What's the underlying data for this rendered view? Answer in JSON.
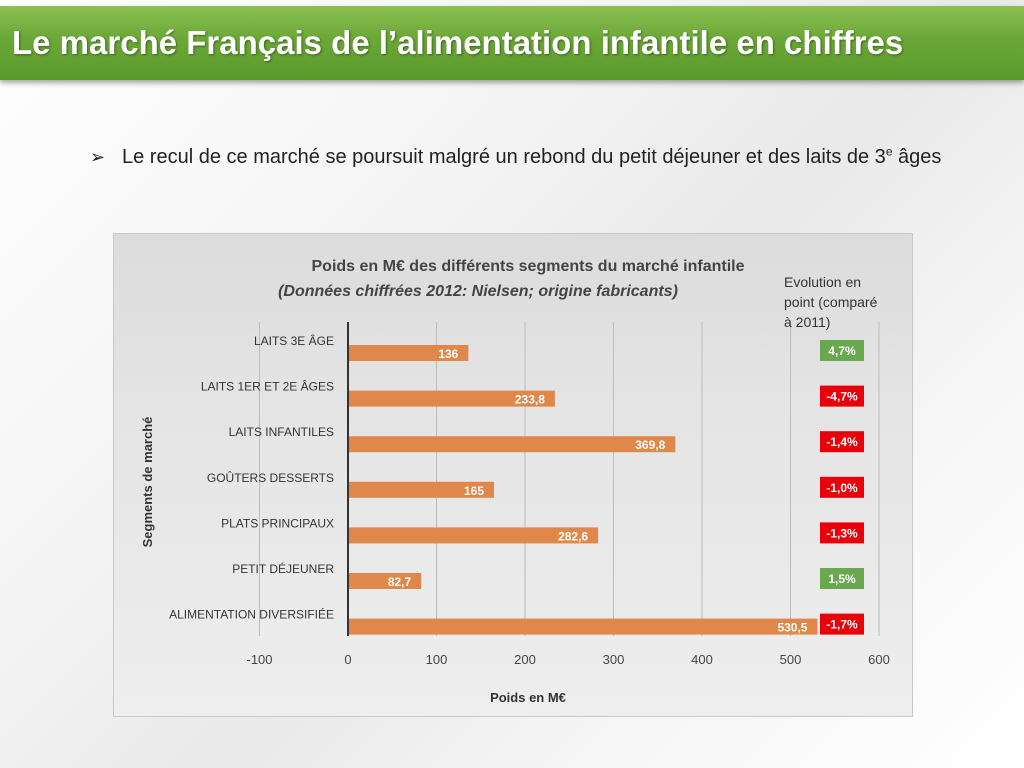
{
  "slide": {
    "title": "Le marché Français de l’alimentation infantile en chiffres",
    "bullet_main": "Le recul de ce marché se poursuit malgré un rebond du petit déjeuner et des laits de 3",
    "bullet_sup": "e",
    "bullet_tail": " âges"
  },
  "chart_data": {
    "type": "bar",
    "orientation": "horizontal",
    "title": "Poids en M€ des différents segments du marché infantile",
    "subtitle": "(Données chiffrées 2012: Nielsen; origine fabricants)",
    "xlabel": "Poids en M€",
    "ylabel": "Segments de marché",
    "xlim": [
      -100,
      600
    ],
    "xticks": [
      -100,
      0,
      100,
      200,
      300,
      400,
      500,
      600
    ],
    "grid": true,
    "categories": [
      "LAITS 3E ÂGE",
      "LAITS 1ER ET 2E ÂGES",
      "LAITS INFANTILES",
      "GOÛTERS DESSERTS",
      "PLATS PRINCIPAUX",
      "PETIT DÉJEUNER",
      "ALIMENTATION DIVERSIFIÉE"
    ],
    "values": [
      136,
      233.8,
      369.8,
      165,
      282.6,
      82.7,
      530.5
    ],
    "value_labels": [
      "136",
      "233,8",
      "369,8",
      "165",
      "282,6",
      "82,7",
      "530,5"
    ],
    "bar_color": "#e0874a",
    "evolution_header": [
      "Evolution en",
      "point (comparé",
      "à 2011)"
    ],
    "evolution": [
      {
        "label": "4,7%",
        "color": "#6aa84f"
      },
      {
        "label": "-4,7%",
        "color": "#e8000b"
      },
      {
        "label": "-1,4%",
        "color": "#e8000b"
      },
      {
        "label": "-1,0%",
        "color": "#e8000b"
      },
      {
        "label": "-1,3%",
        "color": "#e8000b"
      },
      {
        "label": "1,5%",
        "color": "#6aa84f"
      },
      {
        "label": "-1,7%",
        "color": "#e8000b"
      }
    ]
  }
}
